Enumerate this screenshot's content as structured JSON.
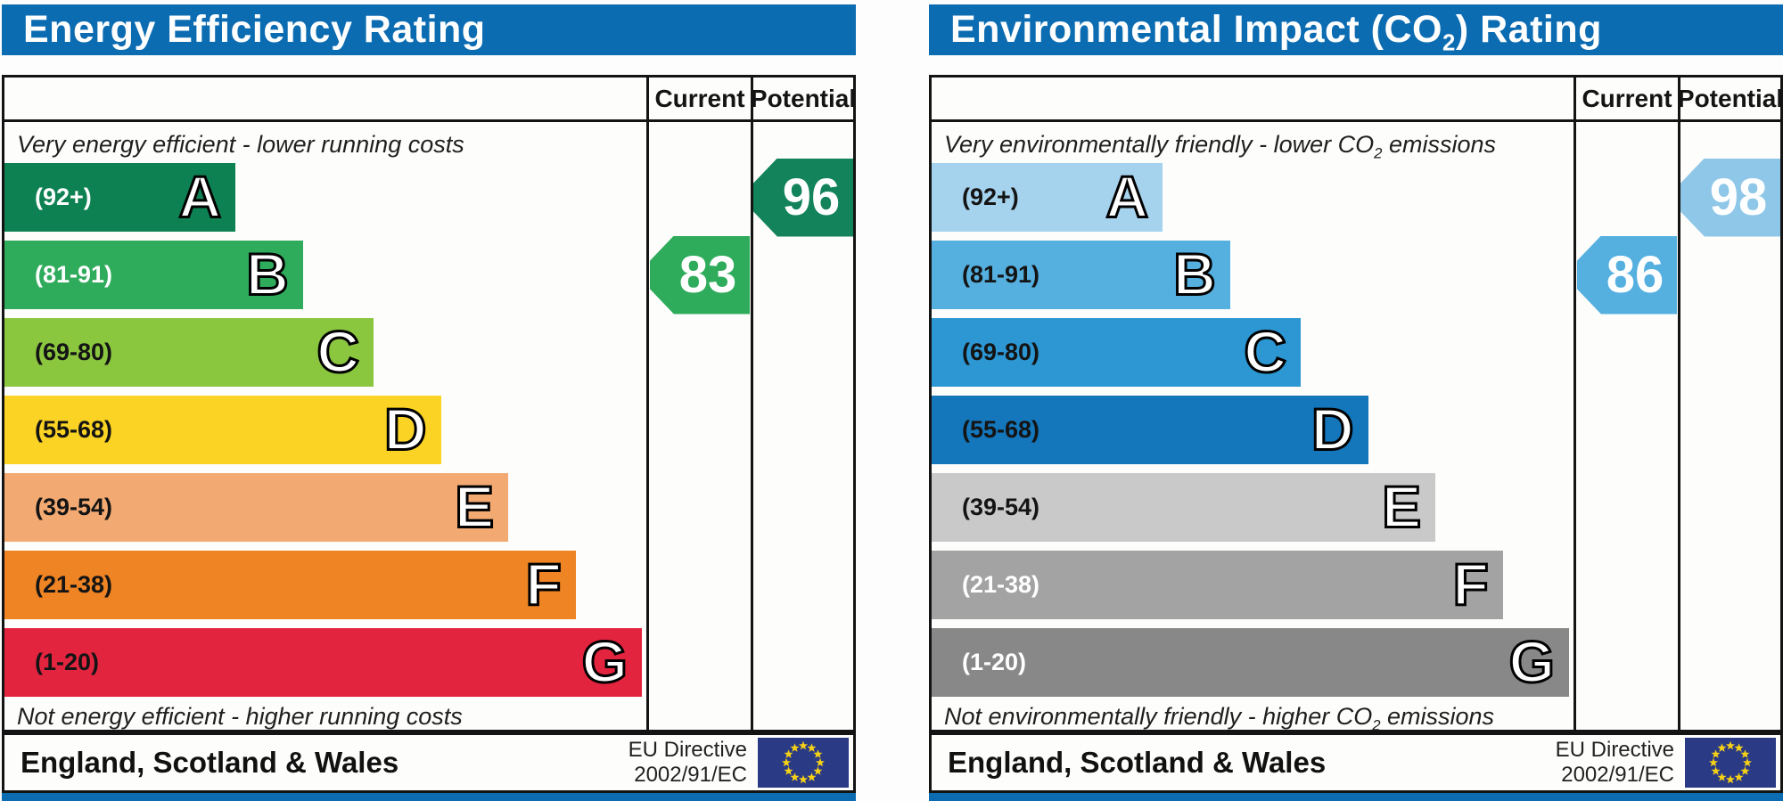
{
  "theme": {
    "title_bar_blue": "#0c6cb2",
    "table_border": "#141414",
    "eu_flag_navy": "#2b3a85",
    "eu_flag_stars": "#f6d116"
  },
  "panels": [
    {
      "id": "energy-efficiency-rating",
      "title": {
        "pre": "Energy Efficiency Rating",
        "sub": "",
        "post": ""
      },
      "columns": {
        "current": "Current",
        "potential": "Potential"
      },
      "top_note": {
        "pre": "Very energy efficient - lower running costs",
        "sub": "",
        "post": ""
      },
      "bottom_note": {
        "pre": "Not energy efficient - higher running costs",
        "sub": "",
        "post": ""
      },
      "bands": [
        {
          "range": "(92+)",
          "letter": "A",
          "color": "#0e8152",
          "label_color": "#ffffff",
          "width_pct": 36
        },
        {
          "range": "(81-91)",
          "letter": "B",
          "color": "#2fab5c",
          "label_color": "#ffffff",
          "width_pct": 46.5
        },
        {
          "range": "(69-80)",
          "letter": "C",
          "color": "#8bc63f",
          "label_color": "#141414",
          "width_pct": 57.5
        },
        {
          "range": "(55-68)",
          "letter": "D",
          "color": "#fbd324",
          "label_color": "#141414",
          "width_pct": 68
        },
        {
          "range": "(39-54)",
          "letter": "E",
          "color": "#f2aa72",
          "label_color": "#141414",
          "width_pct": 78.5
        },
        {
          "range": "(21-38)",
          "letter": "F",
          "color": "#ee8424",
          "label_color": "#141414",
          "width_pct": 89
        },
        {
          "range": "(1-20)",
          "letter": "G",
          "color": "#e3243f",
          "label_color": "#141414",
          "width_pct": 99.3
        }
      ],
      "current": {
        "value": "83",
        "band_index": 1,
        "color": "#2fab5c"
      },
      "potential": {
        "value": "96",
        "band_index": 0,
        "color": "#12835a"
      },
      "footer": {
        "region": "England, Scotland & Wales",
        "directive": [
          "EU Directive",
          "2002/91/EC"
        ]
      }
    },
    {
      "id": "environmental-impact-co2-rating",
      "title": {
        "pre": "Environmental Impact (CO",
        "sub": "2",
        "post": ") Rating"
      },
      "columns": {
        "current": "Current",
        "potential": "Potential"
      },
      "top_note": {
        "pre": "Very environmentally friendly - lower CO",
        "sub": "2",
        "post": " emissions"
      },
      "bottom_note": {
        "pre": "Not environmentally friendly - higher CO",
        "sub": "2",
        "post": " emissions"
      },
      "bands": [
        {
          "range": "(92+)",
          "letter": "A",
          "color": "#a5d2ed",
          "label_color": "#141414",
          "width_pct": 36
        },
        {
          "range": "(81-91)",
          "letter": "B",
          "color": "#55b0e0",
          "label_color": "#141414",
          "width_pct": 46.5
        },
        {
          "range": "(69-80)",
          "letter": "C",
          "color": "#2c97d3",
          "label_color": "#141414",
          "width_pct": 57.5
        },
        {
          "range": "(55-68)",
          "letter": "D",
          "color": "#1476bb",
          "label_color": "#141414",
          "width_pct": 68
        },
        {
          "range": "(39-54)",
          "letter": "E",
          "color": "#c9c9c9",
          "label_color": "#141414",
          "width_pct": 78.5
        },
        {
          "range": "(21-38)",
          "letter": "F",
          "color": "#a3a3a3",
          "label_color": "#ffffff",
          "width_pct": 89
        },
        {
          "range": "(1-20)",
          "letter": "G",
          "color": "#888888",
          "label_color": "#ffffff",
          "width_pct": 99.3
        }
      ],
      "current": {
        "value": "86",
        "band_index": 1,
        "color": "#55b0e0"
      },
      "potential": {
        "value": "98",
        "band_index": 0,
        "color": "#8fc7e8"
      },
      "footer": {
        "region": "England, Scotland & Wales",
        "directive": [
          "EU Directive",
          "2002/91/EC"
        ]
      }
    }
  ],
  "chart_data": [
    {
      "type": "bar",
      "title": "Energy Efficiency Rating",
      "categories": [
        "A",
        "B",
        "C",
        "D",
        "E",
        "F",
        "G"
      ],
      "band_ranges": [
        "92+",
        "81-91",
        "69-80",
        "55-68",
        "39-54",
        "21-38",
        "1-20"
      ],
      "band_widths_pct": [
        36,
        46.5,
        57.5,
        68,
        78.5,
        89,
        99.3
      ],
      "current": 83,
      "current_band": "B",
      "potential": 96,
      "potential_band": "A",
      "column_headers": [
        "Current",
        "Potential"
      ],
      "top_label": "Very energy efficient - lower running costs",
      "bottom_label": "Not energy efficient - higher running costs",
      "region": "England, Scotland & Wales",
      "directive": "EU Directive 2002/91/EC",
      "legend_position": "none",
      "grid": false
    },
    {
      "type": "bar",
      "title": "Environmental Impact (CO2) Rating",
      "categories": [
        "A",
        "B",
        "C",
        "D",
        "E",
        "F",
        "G"
      ],
      "band_ranges": [
        "92+",
        "81-91",
        "69-80",
        "55-68",
        "39-54",
        "21-38",
        "1-20"
      ],
      "band_widths_pct": [
        36,
        46.5,
        57.5,
        68,
        78.5,
        89,
        99.3
      ],
      "current": 86,
      "current_band": "B",
      "potential": 98,
      "potential_band": "A",
      "column_headers": [
        "Current",
        "Potential"
      ],
      "top_label": "Very environmentally friendly - lower CO2 emissions",
      "bottom_label": "Not environmentally friendly - higher CO2 emissions",
      "region": "England, Scotland & Wales",
      "directive": "EU Directive 2002/91/EC",
      "legend_position": "none",
      "grid": false
    }
  ]
}
